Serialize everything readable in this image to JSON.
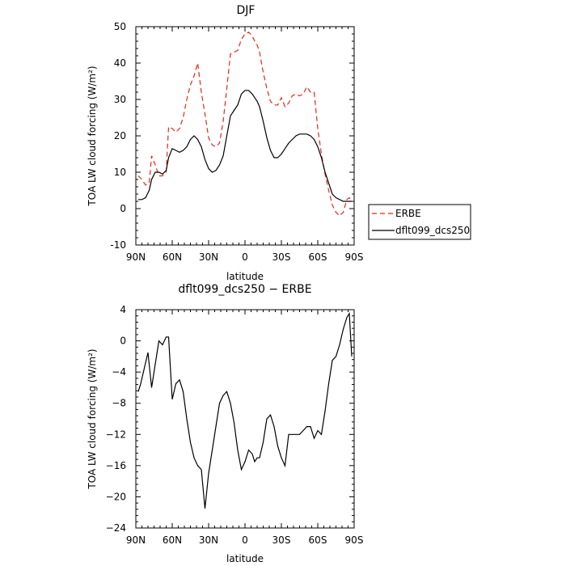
{
  "chart_data": [
    {
      "type": "line",
      "title": "DJF",
      "xlabel": "latitude",
      "ylabel": "TOA LW cloud forcing (W/m²)",
      "xlim": [
        -90,
        90
      ],
      "ylim": [
        -10,
        50
      ],
      "xticks": [
        -90,
        -60,
        -30,
        0,
        30,
        60,
        90
      ],
      "xtick_labels": [
        "90N",
        "60N",
        "30N",
        "0",
        "30S",
        "60S",
        "90S"
      ],
      "yticks": [
        -10,
        0,
        10,
        20,
        30,
        40,
        50
      ],
      "ytick_labels": [
        "-10",
        "0",
        "10",
        "20",
        "30",
        "40",
        "50"
      ],
      "grid": false,
      "legend_position": "outside-right-bottom",
      "series": [
        {
          "name": "ERBE",
          "color": "#e8251f",
          "dash": "dashed",
          "x": [
            -88,
            -85,
            -82,
            -79,
            -77,
            -74,
            -71,
            -68,
            -65,
            -63,
            -60,
            -57,
            -54,
            -51,
            -48,
            -45,
            -42,
            -39,
            -36,
            -33,
            -30,
            -27,
            -24,
            -21,
            -18,
            -15,
            -12,
            -9,
            -6,
            -3,
            0,
            3,
            6,
            8,
            10,
            12,
            15,
            18,
            21,
            24,
            27,
            30,
            33,
            36,
            39,
            42,
            45,
            48,
            51,
            54,
            57,
            60,
            63,
            66,
            69,
            72,
            75,
            78,
            81,
            84,
            86,
            88
          ],
          "y": [
            9,
            8,
            6.5,
            7,
            14.5,
            12,
            9,
            9,
            10,
            22.5,
            22,
            21,
            22,
            25,
            30,
            34,
            36.5,
            40,
            32,
            26,
            19.5,
            17.5,
            17,
            18,
            24,
            33,
            42.5,
            43,
            43.5,
            46.5,
            48,
            48.5,
            47.5,
            46,
            45,
            43,
            37.5,
            33,
            29.5,
            28.5,
            28.5,
            30.5,
            28,
            29,
            31,
            31.5,
            31,
            31.5,
            33.5,
            32,
            32,
            22,
            15,
            9.5,
            5,
            1,
            -1,
            -2,
            -1,
            2.5,
            3,
            2
          ]
        },
        {
          "name": "dflt099_dcs250",
          "color": "#000000",
          "dash": "solid",
          "x": [
            -88,
            -85,
            -82,
            -79,
            -77,
            -74,
            -71,
            -68,
            -65,
            -63,
            -60,
            -57,
            -54,
            -51,
            -48,
            -45,
            -42,
            -39,
            -36,
            -33,
            -30,
            -27,
            -24,
            -21,
            -18,
            -15,
            -12,
            -9,
            -6,
            -3,
            0,
            3,
            6,
            8,
            10,
            12,
            15,
            18,
            21,
            24,
            27,
            30,
            33,
            36,
            39,
            42,
            45,
            48,
            51,
            54,
            57,
            60,
            63,
            66,
            69,
            72,
            75,
            78,
            81,
            84,
            86,
            88
          ],
          "y": [
            2.5,
            2.5,
            3,
            5,
            8,
            10,
            10,
            9.5,
            10.5,
            14,
            16.5,
            16,
            15.5,
            16,
            17,
            19,
            20,
            19,
            17,
            13.5,
            11,
            10,
            10.5,
            12,
            14.5,
            20,
            25.5,
            27,
            28.5,
            31.5,
            32.5,
            32.5,
            31.5,
            30.5,
            29.5,
            28,
            24,
            19.5,
            16,
            14,
            14,
            15,
            16.5,
            18,
            19,
            20,
            20.5,
            20.5,
            20.5,
            20,
            19,
            17,
            14,
            10,
            7,
            4,
            3,
            2.5,
            2,
            2,
            2,
            2
          ]
        }
      ]
    },
    {
      "type": "line",
      "title": "dflt099_dcs250 − ERBE",
      "xlabel": "latitude",
      "ylabel": "TOA LW cloud forcing (W/m²)",
      "xlim": [
        -90,
        90
      ],
      "ylim": [
        -24,
        4
      ],
      "xticks": [
        -90,
        -60,
        -30,
        0,
        30,
        60,
        90
      ],
      "xtick_labels": [
        "90N",
        "60N",
        "30N",
        "0",
        "30S",
        "60S",
        "90S"
      ],
      "yticks": [
        -24,
        -20,
        -16,
        -12,
        -8,
        -4,
        0,
        4
      ],
      "ytick_labels": [
        "−24",
        "−20",
        "−16",
        "−12",
        "−8",
        "−4",
        "0",
        "4"
      ],
      "grid": false,
      "series": [
        {
          "color": "#000000",
          "dash": "solid",
          "x": [
            -88,
            -86,
            -83,
            -80,
            -77,
            -74,
            -71,
            -68,
            -65,
            -63,
            -60,
            -57,
            -54,
            -51,
            -48,
            -45,
            -42,
            -39,
            -36,
            -33,
            -30,
            -27,
            -24,
            -21,
            -18,
            -15,
            -12,
            -9,
            -6,
            -3,
            0,
            3,
            6,
            8,
            10,
            12,
            15,
            18,
            21,
            24,
            27,
            30,
            33,
            36,
            39,
            42,
            45,
            48,
            51,
            54,
            57,
            60,
            63,
            66,
            69,
            72,
            75,
            78,
            81,
            84,
            86,
            88
          ],
          "y": [
            -6.5,
            -5.5,
            -3.5,
            -1.5,
            -6,
            -3,
            0,
            -0.5,
            0.5,
            0.5,
            -7.5,
            -5.5,
            -5,
            -6.5,
            -10,
            -13,
            -15,
            -16,
            -16.5,
            -21.5,
            -17,
            -14,
            -11,
            -8,
            -7,
            -6.5,
            -8,
            -10.5,
            -14,
            -16.5,
            -15.5,
            -14,
            -14.5,
            -15.5,
            -15,
            -15,
            -13,
            -10,
            -9.5,
            -11,
            -13.5,
            -15,
            -16,
            -12,
            -12,
            -12,
            -12,
            -11.5,
            -11,
            -11,
            -12.5,
            -11.5,
            -12,
            -9,
            -5.5,
            -2.5,
            -2,
            -0.5,
            1.5,
            3,
            3.5,
            -2
          ]
        }
      ]
    }
  ]
}
